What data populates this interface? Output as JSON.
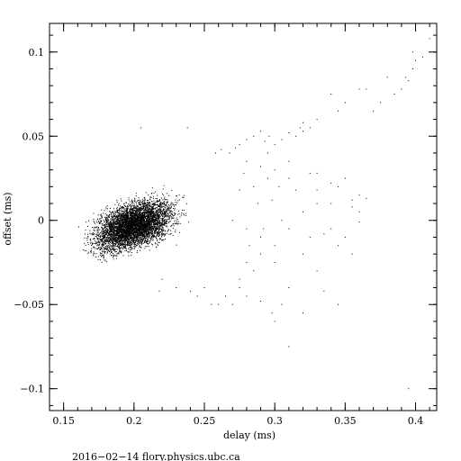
{
  "chart_data": {
    "type": "scatter",
    "title": "",
    "xlabel": "delay (ms)",
    "ylabel": "offset (ms)",
    "xlim": [
      0.14,
      0.415
    ],
    "ylim": [
      -0.113,
      0.117
    ],
    "x_ticks": [
      0.15,
      0.2,
      0.25,
      0.3,
      0.35,
      0.4
    ],
    "x_tick_labels": [
      "0.15",
      "0.2",
      "0.25",
      "0.3",
      "0.35",
      "0.4"
    ],
    "y_ticks": [
      -0.1,
      -0.05,
      0,
      0.05,
      0.1
    ],
    "y_tick_labels": [
      "−0.1",
      "−0.05",
      "0",
      "0.05",
      "0.1"
    ],
    "grid": false,
    "legend": "none",
    "marker_color": "#000000",
    "dense_cluster": {
      "x_range": [
        0.155,
        0.27
      ],
      "y_range": [
        -0.03,
        0.028
      ],
      "center": [
        0.2,
        -0.003
      ]
    },
    "points": [
      [
        0.205,
        0.055
      ],
      [
        0.238,
        0.055
      ],
      [
        0.258,
        0.04
      ],
      [
        0.262,
        0.042
      ],
      [
        0.268,
        0.04
      ],
      [
        0.272,
        0.043
      ],
      [
        0.275,
        0.045
      ],
      [
        0.28,
        0.048
      ],
      [
        0.285,
        0.05
      ],
      [
        0.29,
        0.053
      ],
      [
        0.293,
        0.047
      ],
      [
        0.296,
        0.05
      ],
      [
        0.3,
        0.045
      ],
      [
        0.305,
        0.048
      ],
      [
        0.31,
        0.052
      ],
      [
        0.315,
        0.05
      ],
      [
        0.318,
        0.055
      ],
      [
        0.32,
        0.058
      ],
      [
        0.325,
        0.055
      ],
      [
        0.33,
        0.06
      ],
      [
        0.28,
        0.035
      ],
      [
        0.29,
        0.032
      ],
      [
        0.3,
        0.03
      ],
      [
        0.31,
        0.025
      ],
      [
        0.33,
        0.028
      ],
      [
        0.34,
        0.022
      ],
      [
        0.345,
        0.02
      ],
      [
        0.36,
        0.015
      ],
      [
        0.365,
        0.013
      ],
      [
        0.35,
        0.025
      ],
      [
        0.27,
        0.0
      ],
      [
        0.28,
        -0.005
      ],
      [
        0.29,
        -0.01
      ],
      [
        0.3,
        -0.015
      ],
      [
        0.305,
        0.0
      ],
      [
        0.31,
        -0.005
      ],
      [
        0.32,
        0.005
      ],
      [
        0.33,
        0.01
      ],
      [
        0.335,
        -0.008
      ],
      [
        0.345,
        -0.015
      ],
      [
        0.35,
        -0.01
      ],
      [
        0.355,
        0.008
      ],
      [
        0.36,
        0.005
      ],
      [
        0.355,
        -0.02
      ],
      [
        0.33,
        -0.03
      ],
      [
        0.335,
        -0.042
      ],
      [
        0.345,
        -0.05
      ],
      [
        0.31,
        -0.04
      ],
      [
        0.3,
        -0.06
      ],
      [
        0.298,
        -0.055
      ],
      [
        0.305,
        -0.05
      ],
      [
        0.29,
        -0.048
      ],
      [
        0.28,
        -0.045
      ],
      [
        0.275,
        -0.04
      ],
      [
        0.27,
        -0.05
      ],
      [
        0.265,
        -0.045
      ],
      [
        0.26,
        -0.05
      ],
      [
        0.25,
        -0.04
      ],
      [
        0.255,
        -0.05
      ],
      [
        0.245,
        -0.045
      ],
      [
        0.24,
        -0.042
      ],
      [
        0.23,
        -0.04
      ],
      [
        0.22,
        -0.035
      ],
      [
        0.218,
        -0.042
      ],
      [
        0.31,
        -0.075
      ],
      [
        0.32,
        -0.055
      ],
      [
        0.34,
        0.075
      ],
      [
        0.345,
        0.065
      ],
      [
        0.35,
        0.07
      ],
      [
        0.36,
        0.078
      ],
      [
        0.365,
        0.078
      ],
      [
        0.37,
        0.065
      ],
      [
        0.375,
        0.07
      ],
      [
        0.38,
        0.085
      ],
      [
        0.385,
        0.075
      ],
      [
        0.39,
        0.078
      ],
      [
        0.395,
        0.083
      ],
      [
        0.398,
        0.09
      ],
      [
        0.4,
        0.095
      ],
      [
        0.405,
        0.097
      ],
      [
        0.41,
        0.108
      ],
      [
        0.398,
        0.1
      ],
      [
        0.393,
        0.085
      ],
      [
        0.395,
        -0.1
      ],
      [
        0.32,
        0.053
      ],
      [
        0.295,
        0.04
      ],
      [
        0.31,
        0.035
      ],
      [
        0.355,
        0.012
      ],
      [
        0.36,
        -0.001
      ],
      [
        0.34,
        -0.005
      ],
      [
        0.325,
        -0.01
      ],
      [
        0.32,
        -0.02
      ],
      [
        0.3,
        -0.025
      ],
      [
        0.29,
        -0.02
      ],
      [
        0.285,
        -0.03
      ],
      [
        0.28,
        -0.025
      ],
      [
        0.275,
        -0.035
      ],
      [
        0.282,
        -0.015
      ],
      [
        0.292,
        -0.005
      ],
      [
        0.298,
        0.012
      ],
      [
        0.303,
        0.02
      ],
      [
        0.295,
        0.025
      ],
      [
        0.285,
        0.02
      ],
      [
        0.278,
        0.028
      ],
      [
        0.275,
        0.018
      ],
      [
        0.288,
        0.01
      ],
      [
        0.315,
        0.018
      ],
      [
        0.325,
        0.028
      ],
      [
        0.33,
        0.018
      ],
      [
        0.34,
        0.01
      ]
    ]
  },
  "footer": {
    "text": "2016−02−14 flory.physics.ubc.ca"
  }
}
